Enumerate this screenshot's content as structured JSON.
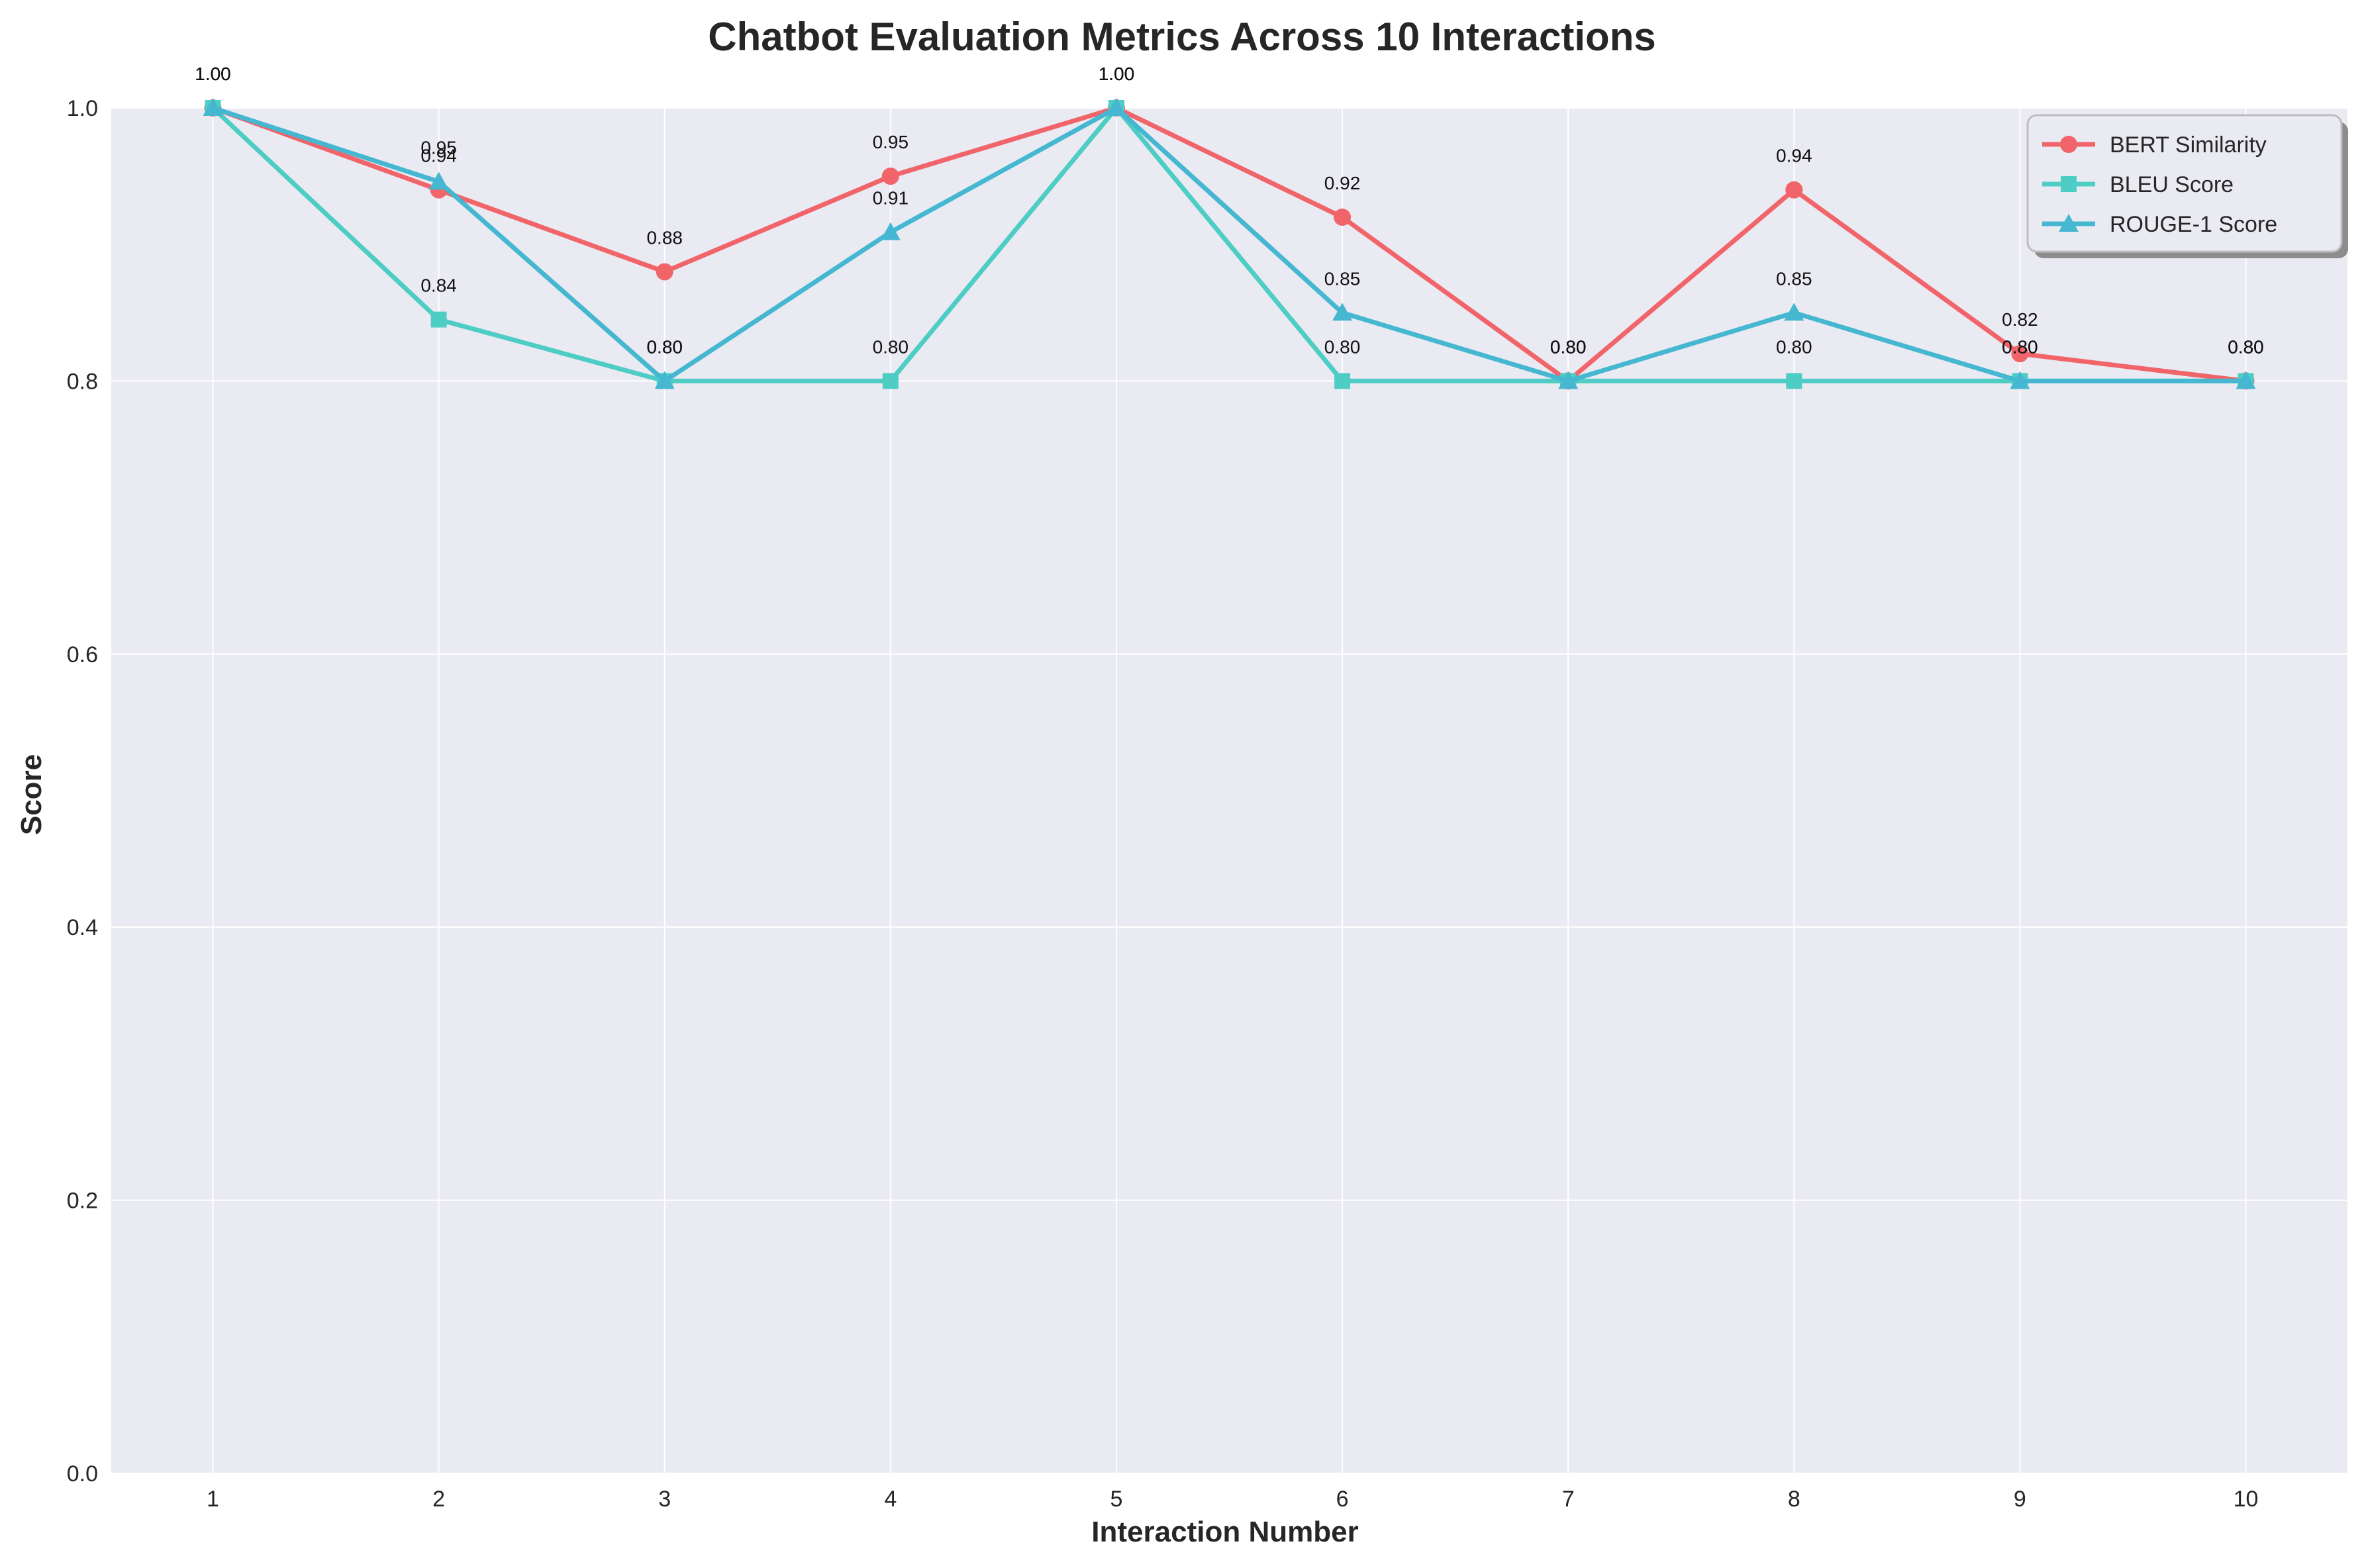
{
  "chart_data": {
    "type": "line",
    "title": "Chatbot Evaluation Metrics Across 10 Interactions",
    "xlabel": "Interaction Number",
    "ylabel": "Score",
    "x": [
      1,
      2,
      3,
      4,
      5,
      6,
      7,
      8,
      9,
      10
    ],
    "xlim": [
      0.55,
      10.45
    ],
    "ylim": [
      0,
      1
    ],
    "yticks": [
      0.0,
      0.2,
      0.4,
      0.6,
      0.8,
      1.0
    ],
    "ytick_labels": [
      "0.0",
      "0.2",
      "0.4",
      "0.6",
      "0.8",
      "1.0"
    ],
    "xtick_labels": [
      "1",
      "2",
      "3",
      "4",
      "5",
      "6",
      "7",
      "8",
      "9",
      "10"
    ],
    "grid": true,
    "legend_position": "top-right",
    "series": [
      {
        "name": "BERT Similarity",
        "color": "#f0646a",
        "marker": "circle",
        "values": [
          1.0,
          0.94,
          0.88,
          0.95,
          1.0,
          0.92,
          0.8,
          0.94,
          0.82,
          0.8
        ],
        "labels": [
          "1.00",
          "0.94",
          "0.88",
          "0.95",
          "1.00",
          "0.92",
          "0.80",
          "0.94",
          "0.82",
          "0.80"
        ]
      },
      {
        "name": "BLEU Score",
        "color": "#4ecdc4",
        "marker": "square",
        "values": [
          1.0,
          0.845,
          0.8,
          0.8,
          1.0,
          0.8,
          0.8,
          0.8,
          0.8,
          0.8
        ],
        "labels": [
          "1.00",
          "0.84",
          "0.80",
          "0.80",
          "1.00",
          "0.80",
          "0.80",
          "0.80",
          "0.80",
          "0.80"
        ]
      },
      {
        "name": "ROUGE-1 Score",
        "color": "#45b7d1",
        "marker": "triangle",
        "values": [
          1.0,
          0.946,
          0.8,
          0.909,
          1.0,
          0.85,
          0.8,
          0.85,
          0.8,
          0.8
        ],
        "labels": [
          "1.00",
          "0.95",
          "0.80",
          "0.91",
          "1.00",
          "0.85",
          "0.80",
          "0.85",
          "0.80",
          "0.80"
        ]
      }
    ]
  }
}
